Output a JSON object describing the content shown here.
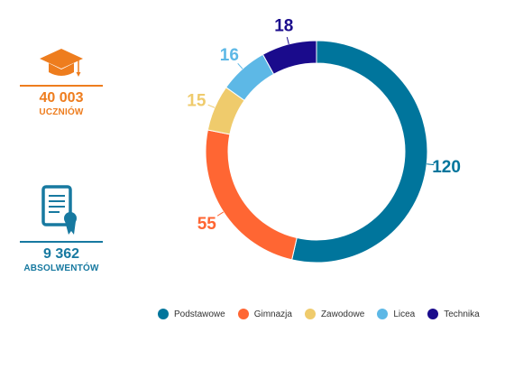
{
  "stats": {
    "students": {
      "value": "40 003",
      "label": "UCZNIÓW",
      "icon": "graduation-cap-icon",
      "color": "#EE7D1E"
    },
    "graduates": {
      "value": "9 362",
      "label": "ABSOLWENTÓW",
      "icon": "diploma-certificate-icon",
      "color": "#1779A0"
    }
  },
  "chart_data": {
    "type": "pie",
    "donut": true,
    "categories": [
      "Podstawowe",
      "Gimnazja",
      "Zawodowe",
      "Licea",
      "Technika"
    ],
    "values": [
      120,
      55,
      15,
      16,
      18
    ],
    "colors": [
      "#00759C",
      "#FF6633",
      "#EFCB6C",
      "#5DB8E6",
      "#1A0B8C"
    ],
    "legend_position": "bottom"
  }
}
